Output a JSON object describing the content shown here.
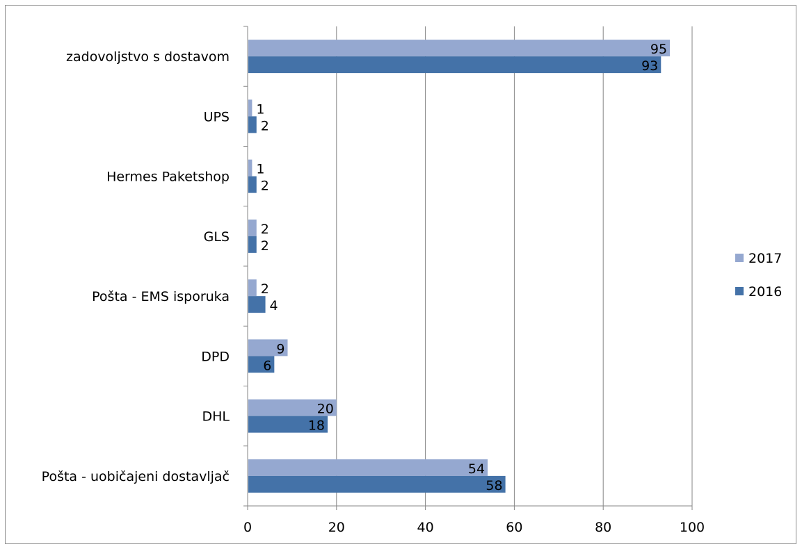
{
  "chart_data": {
    "type": "bar",
    "orientation": "horizontal",
    "title": "",
    "xlabel": "",
    "ylabel": "",
    "categories": [
      "zadovoljstvo s dostavom",
      "UPS",
      "Hermes Paketshop",
      "GLS",
      "Pošta - EMS isporuka",
      "DPD",
      "DHL",
      "Pošta - uobičajeni dostavljač"
    ],
    "series": [
      {
        "name": "2017",
        "color": "#95a8d0",
        "values": [
          95,
          1,
          1,
          2,
          2,
          9,
          20,
          54
        ]
      },
      {
        "name": "2016",
        "color": "#4472a8",
        "values": [
          93,
          2,
          2,
          2,
          4,
          6,
          18,
          58
        ]
      }
    ],
    "xlim": [
      0,
      100
    ],
    "xticks": [
      "0",
      "20",
      "40",
      "60",
      "80",
      "100"
    ],
    "grid": "vertical",
    "legend": "right"
  }
}
